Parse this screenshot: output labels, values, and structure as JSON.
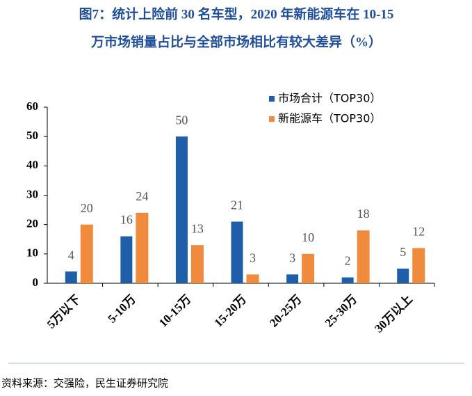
{
  "chart_data": {
    "type": "bar",
    "title_lines": [
      "图7：统计上险前 30 名车型，2020 年新能源车在 10-15",
      "万市场销量占比与全部市场相比有较大差异（%）"
    ],
    "categories": [
      "5万以下",
      "5-10万",
      "10-15万",
      "15-20万",
      "20-25万",
      "25-30万",
      "30万以上"
    ],
    "series": [
      {
        "name": "市场合计（TOP30）",
        "color": "#1f5ea8",
        "values": [
          4,
          16,
          50,
          21,
          3,
          2,
          5
        ]
      },
      {
        "name": "新能源车（TOP30）",
        "color": "#f08a3c",
        "values": [
          20,
          24,
          13,
          3,
          10,
          18,
          12
        ]
      }
    ],
    "ylim": [
      0,
      60
    ],
    "yticks": [
      0,
      10,
      20,
      30,
      40,
      50,
      60
    ],
    "source": "资料来源：交强险，民生证券研究院"
  }
}
